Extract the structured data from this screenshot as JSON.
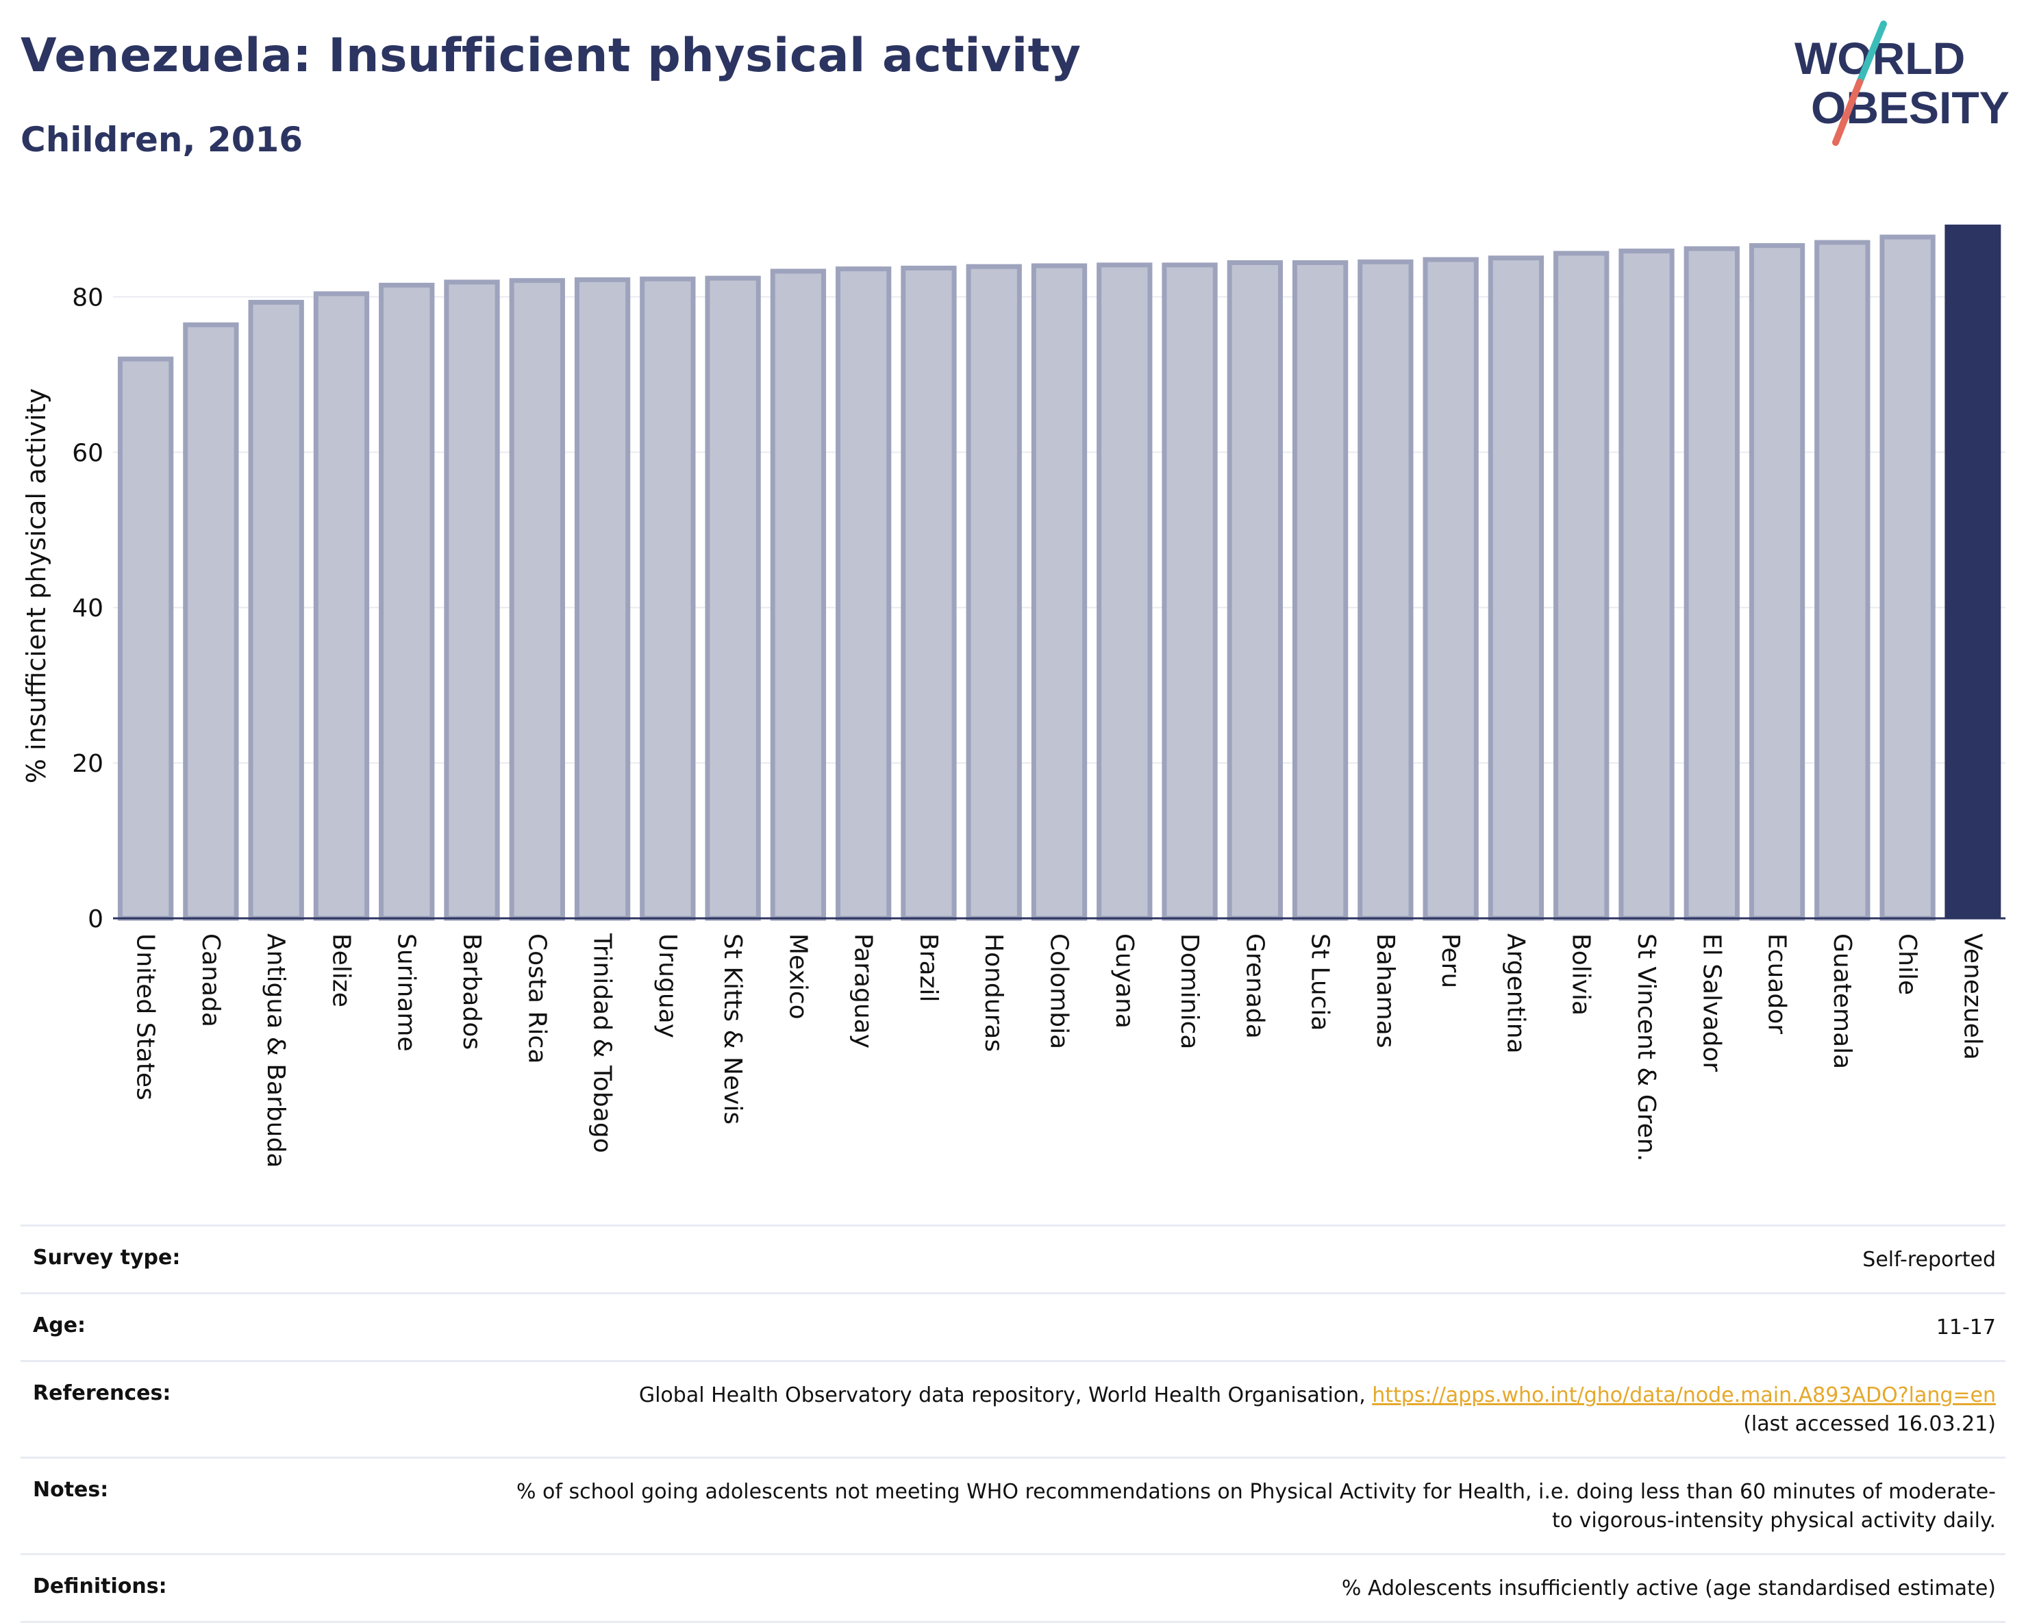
{
  "header": {
    "title": "Venezuela: Insufficient physical activity",
    "subtitle": "Children, 2016"
  },
  "logo": {
    "line1": "WORLD",
    "line2": "OBESITY",
    "text_color": "#2c3561",
    "slash_top_color": "#3bbcb9",
    "slash_bottom_color": "#e46b5d"
  },
  "chart_data": {
    "type": "bar",
    "ylabel": "% insufficient physical activity",
    "xlabel": "",
    "ylim": [
      0,
      90
    ],
    "yticks": [
      0,
      20,
      40,
      60,
      80
    ],
    "grid": true,
    "highlight": "Venezuela",
    "colors": {
      "bar": "#c0c3d2",
      "bar_edge": "#9ea3bd",
      "highlight": "#2c3561",
      "grid": "#e9ebf0"
    },
    "categories": [
      "United States",
      "Canada",
      "Antigua & Barbuda",
      "Belize",
      "Suriname",
      "Barbados",
      "Costa Rica",
      "Trinidad & Tobago",
      "Uruguay",
      "St Kitts & Nevis",
      "Mexico",
      "Paraguay",
      "Brazil",
      "Honduras",
      "Colombia",
      "Guyana",
      "Dominica",
      "Grenada",
      "St Lucia",
      "Bahamas",
      "Peru",
      "Argentina",
      "Bolivia",
      "St Vincent & Gren.",
      "El Salvador",
      "Ecuador",
      "Guatemala",
      "Chile",
      "Venezuela"
    ],
    "values": [
      72.0,
      76.4,
      79.3,
      80.4,
      81.5,
      81.9,
      82.1,
      82.2,
      82.3,
      82.4,
      83.3,
      83.6,
      83.7,
      83.9,
      84.0,
      84.1,
      84.1,
      84.4,
      84.4,
      84.5,
      84.8,
      85.0,
      85.6,
      85.9,
      86.2,
      86.6,
      87.0,
      87.7,
      89.3
    ]
  },
  "info": {
    "survey_type_label": "Survey type:",
    "survey_type_value": "Self-reported",
    "age_label": "Age:",
    "age_value": "11-17",
    "references_label": "References:",
    "references_text": "Global Health Observatory data repository, World Health Organisation, ",
    "references_link": "https://apps.who.int/gho/data/node.main.A893ADO?lang=en",
    "references_accessed": "(last accessed 16.03.21)",
    "notes_label": "Notes:",
    "notes_value": "% of school going adolescents not meeting WHO recommendations on Physical Activity for Health, i.e. doing less than 60 minutes of moderate- to vigorous-intensity physical activity daily.",
    "definitions_label": "Definitions:",
    "definitions_value": "% Adolescents insufficiently active (age standardised estimate)"
  }
}
